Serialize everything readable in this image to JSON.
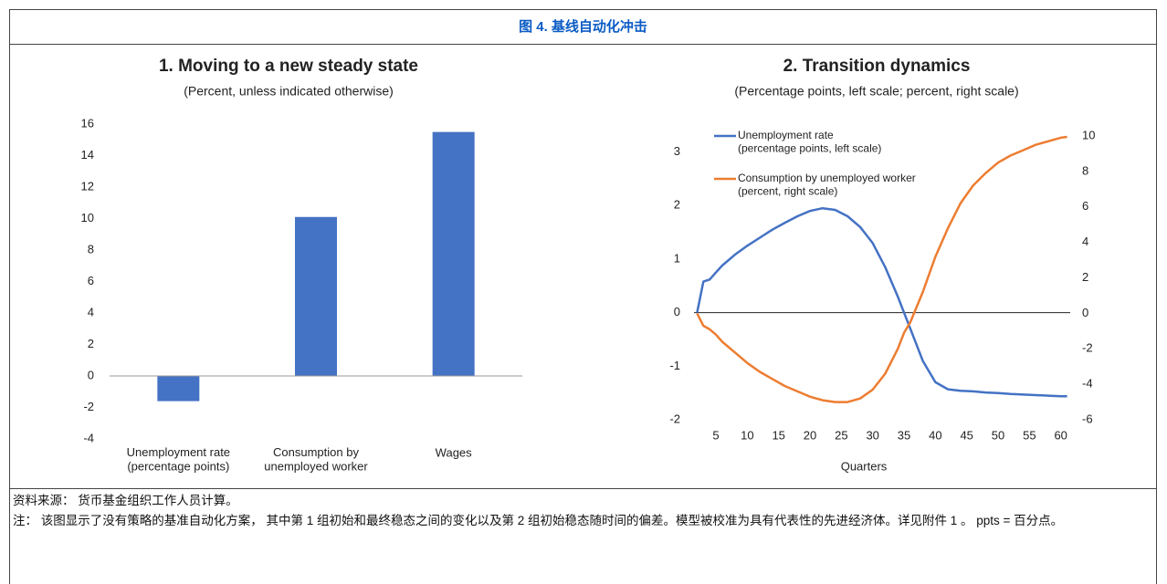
{
  "header": {
    "title": "图 4. 基线自动化冲击"
  },
  "chart_data": [
    {
      "type": "bar",
      "title": "1. Moving to a new steady state",
      "subtitle": "(Percent, unless indicated otherwise)",
      "categories": [
        "Unemployment rate\n(percentage points)",
        "Consumption by\nunemployed worker",
        "Wages"
      ],
      "values": [
        -1.6,
        10.1,
        15.5
      ],
      "color": "#4472c4",
      "ylim": [
        -4,
        16
      ],
      "yticks": [
        -4,
        -2,
        0,
        2,
        4,
        6,
        8,
        10,
        12,
        14,
        16
      ],
      "grid": false
    },
    {
      "type": "line",
      "title": "2. Transition dynamics",
      "subtitle": "(Percentage points, left scale; percent, right scale)",
      "xlabel": "Quarters",
      "x": [
        2,
        3,
        4,
        5,
        6,
        8,
        10,
        12,
        14,
        16,
        18,
        20,
        22,
        24,
        26,
        28,
        30,
        32,
        34,
        35,
        36,
        38,
        40,
        42,
        44,
        46,
        48,
        50,
        52,
        54,
        56,
        58,
        60,
        61
      ],
      "series": [
        {
          "name": "Unemployment rate\n(percentage points, left scale)",
          "color": "#4472c4",
          "axis": "y",
          "values": [
            0,
            0.58,
            0.62,
            0.75,
            0.88,
            1.08,
            1.25,
            1.4,
            1.55,
            1.68,
            1.8,
            1.9,
            1.95,
            1.92,
            1.8,
            1.6,
            1.3,
            0.85,
            0.3,
            0,
            -0.3,
            -0.9,
            -1.3,
            -1.43,
            -1.46,
            -1.47,
            -1.49,
            -1.5,
            -1.52,
            -1.53,
            -1.54,
            -1.55,
            -1.56,
            -1.56
          ]
        },
        {
          "name": "Consumption by unemployed worker\n(percent, right scale)",
          "color": "#ed7d31",
          "axis": "y2",
          "values": [
            0,
            -0.7,
            -0.9,
            -1.2,
            -1.6,
            -2.2,
            -2.8,
            -3.3,
            -3.7,
            -4.1,
            -4.4,
            -4.7,
            -4.9,
            -5.0,
            -5.0,
            -4.8,
            -4.3,
            -3.4,
            -2.0,
            -1.1,
            -0.5,
            1.2,
            3.2,
            4.8,
            6.2,
            7.2,
            7.9,
            8.5,
            8.9,
            9.2,
            9.5,
            9.7,
            9.9,
            9.95
          ]
        }
      ],
      "xlim": [
        1.5,
        61.5
      ],
      "xticks": [
        5,
        10,
        15,
        20,
        25,
        30,
        35,
        40,
        45,
        50,
        55,
        60
      ],
      "ylim": [
        -2,
        3.3
      ],
      "yticks": [
        -2,
        -1,
        0,
        1,
        2,
        3
      ],
      "y2lim": [
        -6,
        10
      ],
      "y2ticks": [
        -6,
        -4,
        -2,
        0,
        2,
        4,
        6,
        8,
        10
      ],
      "legend": "top-left",
      "grid": false
    }
  ],
  "notes": [
    "资料来源： 货币基金组织工作人员计算。",
    "注： 该图显示了没有策略的基准自动化方案， 其中第 1 组初始和最终稳态之间的变化以及第 2 组初始稳态随时间的偏差。模型被校准为具有代表性的先进经济体。详见附件 1 。 ppts = 百分点。"
  ]
}
